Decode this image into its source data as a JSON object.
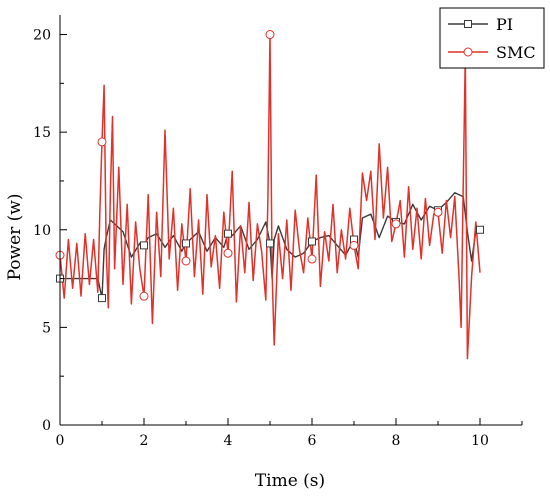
{
  "chart_data": {
    "type": "line",
    "title": "",
    "xlabel": "Time (s)",
    "ylabel": "Power (w)",
    "xlim": [
      0,
      11
    ],
    "ylim": [
      0,
      21
    ],
    "xticks": [
      0,
      2,
      4,
      6,
      8,
      10
    ],
    "yticks": [
      0,
      5,
      10,
      15,
      20
    ],
    "grid": false,
    "legend_position": "top-right",
    "series": [
      {
        "name": "PI",
        "color": "#3a3a3a",
        "marker": "square",
        "marker_x": [
          0,
          1,
          2,
          3,
          4,
          5,
          6,
          7,
          8,
          9,
          10
        ],
        "x": [
          0,
          0.8,
          0.9,
          1.0,
          1.05,
          1.1,
          1.2,
          1.35,
          1.5,
          1.7,
          1.9,
          2.0,
          2.1,
          2.3,
          2.5,
          2.7,
          2.9,
          3.0,
          3.1,
          3.3,
          3.5,
          3.7,
          3.9,
          4.0,
          4.1,
          4.3,
          4.5,
          4.7,
          4.9,
          5.0,
          5.05,
          5.1,
          5.2,
          5.4,
          5.6,
          5.8,
          6.0,
          6.2,
          6.4,
          6.6,
          6.8,
          7.0,
          7.1,
          7.2,
          7.4,
          7.6,
          7.8,
          8.0,
          8.2,
          8.4,
          8.6,
          8.8,
          9.0,
          9.2,
          9.4,
          9.6,
          9.7,
          9.8,
          9.9,
          10.0
        ],
        "y": [
          7.5,
          7.5,
          7.5,
          6.5,
          9.0,
          9.6,
          10.5,
          10.2,
          9.9,
          8.6,
          9.3,
          9.2,
          9.6,
          9.8,
          9.1,
          9.7,
          8.9,
          9.3,
          9.5,
          9.9,
          8.9,
          9.6,
          9.1,
          9.8,
          9.7,
          10.2,
          9.0,
          9.5,
          10.4,
          9.3,
          7.5,
          9.5,
          10.2,
          9.0,
          8.6,
          8.8,
          9.4,
          9.6,
          9.7,
          9.2,
          8.7,
          9.5,
          8.6,
          10.6,
          10.8,
          9.6,
          10.7,
          10.4,
          10.3,
          11.3,
          10.5,
          11.2,
          11.0,
          11.4,
          11.9,
          11.7,
          9.9,
          8.4,
          9.9,
          10.0
        ]
      },
      {
        "name": "SMC",
        "color": "#e0322a",
        "marker": "circle",
        "marker_x": [
          0,
          1,
          2,
          3,
          4,
          5,
          6,
          7,
          8,
          9
        ],
        "x": [
          0,
          0.1,
          0.2,
          0.3,
          0.4,
          0.5,
          0.6,
          0.7,
          0.8,
          0.9,
          0.95,
          1.0,
          1.05,
          1.1,
          1.15,
          1.2,
          1.25,
          1.3,
          1.4,
          1.5,
          1.6,
          1.7,
          1.8,
          1.9,
          2.0,
          2.1,
          2.2,
          2.3,
          2.4,
          2.5,
          2.6,
          2.7,
          2.8,
          2.9,
          3.0,
          3.1,
          3.2,
          3.3,
          3.4,
          3.5,
          3.6,
          3.7,
          3.8,
          3.9,
          4.0,
          4.1,
          4.2,
          4.3,
          4.4,
          4.5,
          4.6,
          4.7,
          4.8,
          4.9,
          4.95,
          5.0,
          5.05,
          5.1,
          5.2,
          5.3,
          5.4,
          5.5,
          5.6,
          5.7,
          5.8,
          5.9,
          6.0,
          6.1,
          6.2,
          6.3,
          6.4,
          6.5,
          6.6,
          6.7,
          6.8,
          6.9,
          7.0,
          7.1,
          7.2,
          7.3,
          7.4,
          7.5,
          7.6,
          7.7,
          7.8,
          7.9,
          8.0,
          8.1,
          8.2,
          8.3,
          8.4,
          8.5,
          8.6,
          8.7,
          8.8,
          8.9,
          9.0,
          9.1,
          9.2,
          9.3,
          9.4,
          9.5,
          9.55,
          9.6,
          9.65,
          9.7,
          9.8,
          9.9,
          10.0
        ],
        "y": [
          8.7,
          6.5,
          9.5,
          7.0,
          9.3,
          6.6,
          9.8,
          7.2,
          9.5,
          6.8,
          11.0,
          14.5,
          17.4,
          9.0,
          6.0,
          12.0,
          15.8,
          8.0,
          13.2,
          7.2,
          11.3,
          6.2,
          10.4,
          8.0,
          6.6,
          11.8,
          5.2,
          10.9,
          7.6,
          15.1,
          8.5,
          11.1,
          6.9,
          10.3,
          8.4,
          12.1,
          7.6,
          10.5,
          6.7,
          11.8,
          8.1,
          9.7,
          7.0,
          10.9,
          8.8,
          13.0,
          6.3,
          10.2,
          7.8,
          11.4,
          7.4,
          10.3,
          8.9,
          6.4,
          11.6,
          20.0,
          7.8,
          4.1,
          9.8,
          7.5,
          10.5,
          6.9,
          11.0,
          9.0,
          7.8,
          10.6,
          8.5,
          12.8,
          7.1,
          9.9,
          8.4,
          11.3,
          7.8,
          10.0,
          8.5,
          11.1,
          9.2,
          8.0,
          12.9,
          11.5,
          13.0,
          9.5,
          14.4,
          10.6,
          13.2,
          9.4,
          10.3,
          11.5,
          8.6,
          12.2,
          9.0,
          11.1,
          8.5,
          11.6,
          9.2,
          10.8,
          10.9,
          8.8,
          11.5,
          9.6,
          11.7,
          7.6,
          5.0,
          12.2,
          18.9,
          3.4,
          7.6,
          10.4,
          7.8
        ]
      }
    ]
  }
}
